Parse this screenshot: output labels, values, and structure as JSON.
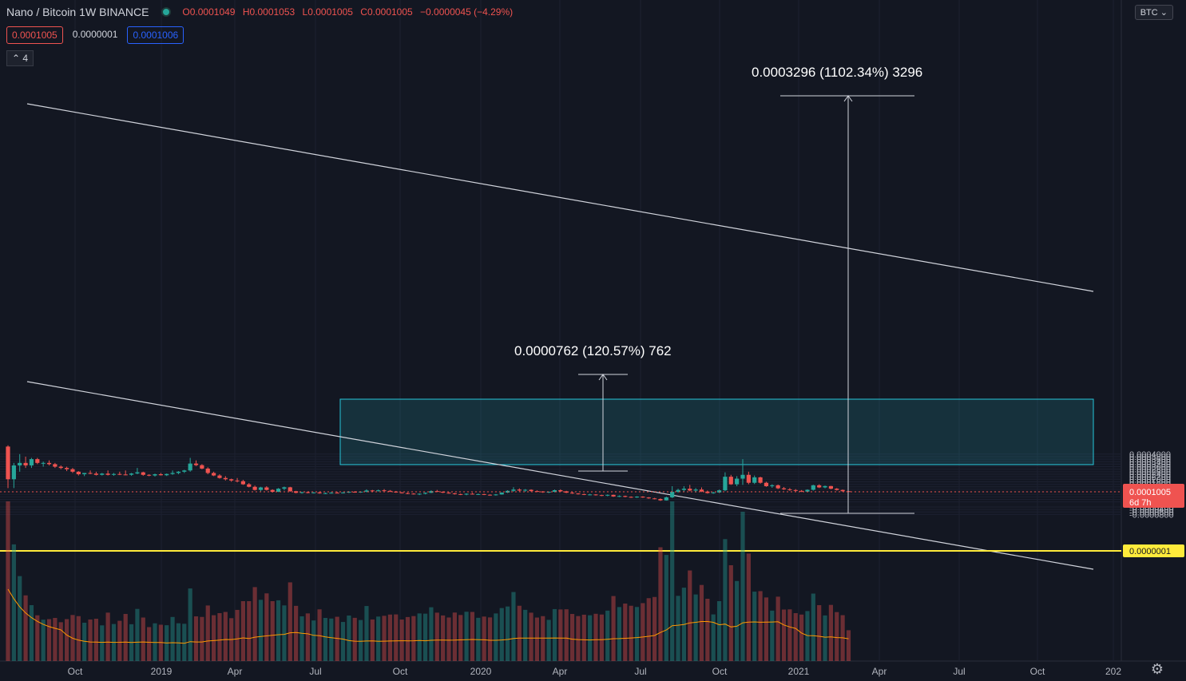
{
  "header": {
    "symbol": "Nano / Bitcoin",
    "interval": "1W",
    "exchange": "BINANCE",
    "open": "O0.0001049",
    "high": "H0.0001053",
    "low": "L0.0001005",
    "close": "C0.0001005",
    "change": "−0.0000045 (−4.29%)"
  },
  "order_pills": {
    "sell": "0.0001005",
    "spread": "0.0000001",
    "buy": "0.0001006"
  },
  "collapse_label": "4",
  "currency_button": "BTC",
  "settings_icon": "gear-icon",
  "colors": {
    "up": "#26a69a",
    "down": "#ef5350",
    "zone": "#26c6da",
    "hline": "#ffeb3b",
    "ma": "#ff9800"
  },
  "chart_data": {
    "type": "candlestick",
    "y_axis_ticks": [
      "0.0004000",
      "0.0003800",
      "0.0003600",
      "0.0003400",
      "0.0003200",
      "0.0003000",
      "0.0002800",
      "0.0002600",
      "0.0002400",
      "0.0002200",
      "0.0002000",
      "0.0001800",
      "0.0001600",
      "0.0001400",
      "0.0001200",
      "0.0001000",
      "0.0000800",
      "0.0000600",
      "0.0000400",
      "0.0000200",
      "-0.0000200",
      "-0.0000400",
      "-0.0000600",
      "-0.0000800"
    ],
    "x_axis_ticks": [
      "Oct",
      "2019",
      "Apr",
      "Jul",
      "Oct",
      "2020",
      "Apr",
      "Jul",
      "Oct",
      "2021",
      "Apr",
      "Jul",
      "Oct",
      "202"
    ],
    "current_price_label": "0.0001005",
    "countdown_label": "6d 7h",
    "hline_label": "0.0000001",
    "measure_labels": [
      "0.0000762 (120.57%) 762",
      "0.0003296 (1102.34%) 3296"
    ],
    "ohlc": [
      [
        0.00046,
        0.00047,
        0.00013,
        0.0002
      ],
      [
        0.0002,
        0.00033,
        0.00013,
        0.00031
      ],
      [
        0.00031,
        0.0004,
        0.00026,
        0.00033
      ],
      [
        0.00033,
        0.00038,
        0.00029,
        0.00031
      ],
      [
        0.00031,
        0.00037,
        0.00029,
        0.00036
      ],
      [
        0.00036,
        0.00037,
        0.00032,
        0.00033
      ],
      [
        0.00033,
        0.00034,
        0.0003,
        0.00033
      ],
      [
        0.00033,
        0.00035,
        0.00031,
        0.00032
      ],
      [
        0.00032,
        0.00033,
        0.00029,
        0.0003
      ],
      [
        0.0003,
        0.00031,
        0.00028,
        0.00029
      ],
      [
        0.00029,
        0.0003,
        0.000265,
        0.00028
      ],
      [
        0.00028,
        0.00029,
        0.00025,
        0.00026
      ],
      [
        0.00026,
        0.000265,
        0.00023,
        0.00024
      ],
      [
        0.00024,
        0.00025,
        0.000225,
        0.00025
      ],
      [
        0.00025,
        0.00027,
        0.00024,
        0.000245
      ],
      [
        0.000245,
        0.00026,
        0.00023,
        0.000235
      ],
      [
        0.000235,
        0.00025,
        0.00023,
        0.000245
      ],
      [
        0.000245,
        0.00027,
        0.00023,
        0.000235
      ],
      [
        0.000235,
        0.00025,
        0.000228,
        0.000242
      ],
      [
        0.000242,
        0.00026,
        0.000233,
        0.000238
      ],
      [
        0.000238,
        0.00027,
        0.000232,
        0.000236
      ],
      [
        0.000236,
        0.00025,
        0.000228,
        0.000246
      ],
      [
        0.000246,
        0.00029,
        0.00024,
        0.000255
      ],
      [
        0.000255,
        0.00026,
        0.000228,
        0.000235
      ],
      [
        0.000235,
        0.00024,
        0.000224,
        0.00023
      ],
      [
        0.00023,
        0.000245,
        0.000222,
        0.00024
      ],
      [
        0.00024,
        0.00025,
        0.00023,
        0.000232
      ],
      [
        0.000232,
        0.000246,
        0.000226,
        0.000242
      ],
      [
        0.000242,
        0.00027,
        0.000235,
        0.00025
      ],
      [
        0.00025,
        0.000265,
        0.00024,
        0.00026
      ],
      [
        0.00026,
        0.000275,
        0.00025,
        0.00027
      ],
      [
        0.00027,
        0.00037,
        0.00026,
        0.000325
      ],
      [
        0.000325,
        0.00035,
        0.000305,
        0.000312
      ],
      [
        0.000312,
        0.00032,
        0.00028,
        0.000285
      ],
      [
        0.000285,
        0.000295,
        0.00024,
        0.00025
      ],
      [
        0.00025,
        0.00026,
        0.000225,
        0.00023
      ],
      [
        0.00023,
        0.00024,
        0.000205,
        0.00021
      ],
      [
        0.00021,
        0.000225,
        0.00019,
        0.0002
      ],
      [
        0.0002,
        0.000205,
        0.00018,
        0.00019
      ],
      [
        0.00019,
        0.00021,
        0.000175,
        0.000185
      ],
      [
        0.000185,
        0.000195,
        0.000155,
        0.00016
      ],
      [
        0.00016,
        0.00017,
        0.000135,
        0.00014
      ],
      [
        0.00014,
        0.00015,
        0.00011,
        0.000115
      ],
      [
        0.000115,
        0.00014,
        0.000105,
        0.000135
      ],
      [
        0.000135,
        0.000145,
        0.00011,
        0.000115
      ],
      [
        0.000115,
        0.00012,
        9.5e-05,
        0.0001
      ],
      [
        0.0001,
        0.00013,
        9.8e-05,
        0.000125
      ],
      [
        0.000125,
        0.000142,
        0.000112,
        0.000136
      ],
      [
        0.000136,
        0.00014,
        0.0001,
        0.000105
      ],
      [
        0.000105,
        0.000108,
        8.8e-05,
        9.2e-05
      ],
      [
        9.2e-05,
        0.0001,
        8.6e-05,
        9.7e-05
      ],
      [
        9.7e-05,
        0.000103,
        8.8e-05,
        9.1e-05
      ],
      [
        9.1e-05,
        9.8e-05,
        8.7e-05,
        9.5e-05
      ],
      [
        9.5e-05,
        0.000102,
        8.5e-05,
        8.8e-05
      ],
      [
        8.8e-05,
        9.4e-05,
        8.2e-05,
        9e-05
      ],
      [
        9e-05,
        9.8e-05,
        8.6e-05,
        9.3e-05
      ],
      [
        9.3e-05,
        0.000101,
        8.8e-05,
        9.2e-05
      ],
      [
        9.2e-05,
        9.7e-05,
        8.7e-05,
        9.5e-05
      ],
      [
        9.5e-05,
        0.000105,
        9e-05,
        0.0001
      ],
      [
        0.0001,
        0.000106,
        9.3e-05,
        9.7e-05
      ],
      [
        9.7e-05,
        0.000104,
        9.2e-05,
        0.000101
      ],
      [
        0.000101,
        0.00012,
        9.6e-05,
        0.000111
      ],
      [
        0.000111,
        0.000115,
        0.000102,
        0.000106
      ],
      [
        0.000106,
        0.000118,
        0.000102,
        0.000112
      ],
      [
        0.000112,
        0.000122,
        0.000106,
        0.000108
      ],
      [
        0.000108,
        0.000114,
        9.8e-05,
        0.000102
      ],
      [
        0.000102,
        0.000107,
        9.2e-05,
        9.5e-05
      ],
      [
        9.5e-05,
        9.8e-05,
        8.7e-05,
        9e-05
      ],
      [
        9e-05,
        9.4e-05,
        8.2e-05,
        8.6e-05
      ],
      [
        8.6e-05,
        9e-05,
        7.8e-05,
        8.2e-05
      ],
      [
        8.2e-05,
        8.8e-05,
        7.4e-05,
        8.5e-05
      ],
      [
        8.5e-05,
        9.5e-05,
        8e-05,
        9.2e-05
      ],
      [
        9.2e-05,
        0.000112,
        9e-05,
        0.000106
      ],
      [
        0.000106,
        0.000115,
        9.8e-05,
        0.0001
      ],
      [
        0.0001,
        0.000104,
        9e-05,
        9.3e-05
      ],
      [
        9.3e-05,
        9.7e-05,
        8.5e-05,
        8.8e-05
      ],
      [
        8.8e-05,
        9.2e-05,
        7.8e-05,
        8.2e-05
      ],
      [
        8.2e-05,
        8.6e-05,
        7.4e-05,
        7.8e-05
      ],
      [
        7.8e-05,
        8.8e-05,
        7.3e-05,
        8.5e-05
      ],
      [
        8.5e-05,
        9.2e-05,
        7.8e-05,
        8e-05
      ],
      [
        8e-05,
        8.6e-05,
        7.5e-05,
        8.2e-05
      ],
      [
        8.2e-05,
        8.5e-05,
        7.4e-05,
        7.7e-05
      ],
      [
        7.7e-05,
        8e-05,
        7e-05,
        7.3e-05
      ],
      [
        7.3e-05,
        8.3e-05,
        7e-05,
        7.9e-05
      ],
      [
        7.9e-05,
        9.6e-05,
        7.7e-05,
        9.4e-05
      ],
      [
        9.4e-05,
        0.000113,
        9e-05,
        0.000108
      ],
      [
        0.000108,
        0.000137,
        0.0001,
        0.000118
      ],
      [
        0.000118,
        0.000128,
        0.000104,
        0.00011
      ],
      [
        0.00011,
        0.000122,
        0.0001,
        0.000116
      ],
      [
        0.000116,
        0.00012,
        0.000102,
        0.000106
      ],
      [
        0.000106,
        0.000112,
        9.8e-05,
        0.000103
      ],
      [
        0.000103,
        0.000106,
        9.2e-05,
        9.6e-05
      ],
      [
        9.6e-05,
        0.000102,
        9e-05,
        0.0001
      ],
      [
        0.0001,
        0.000118,
        9.6e-05,
        0.000113
      ],
      [
        0.000113,
        0.00012,
        0.0001,
        0.000104
      ],
      [
        0.000104,
        0.000108,
        9e-05,
        9.3e-05
      ],
      [
        9.3e-05,
        9.8e-05,
        8.4e-05,
        8.7e-05
      ],
      [
        8.7e-05,
        9e-05,
        7.8e-05,
        8.2e-05
      ],
      [
        8.2e-05,
        8.6e-05,
        7.4e-05,
        7.7e-05
      ],
      [
        7.7e-05,
        8.4e-05,
        7.2e-05,
        7.9e-05
      ],
      [
        7.9e-05,
        8.2e-05,
        7e-05,
        7.4e-05
      ],
      [
        7.4e-05,
        7.7e-05,
        6.6e-05,
        7e-05
      ],
      [
        7e-05,
        7.9e-05,
        6.5e-05,
        7.6e-05
      ],
      [
        7.6e-05,
        7.8e-05,
        6e-05,
        6.3e-05
      ],
      [
        6.3e-05,
        7.2e-05,
        5.8e-05,
        6.7e-05
      ],
      [
        6.7e-05,
        7e-05,
        5.6e-05,
        6e-05
      ],
      [
        6e-05,
        6.4e-05,
        5.2e-05,
        5.5e-05
      ],
      [
        5.5e-05,
        6.5e-05,
        5.2e-05,
        6.2e-05
      ],
      [
        6.2e-05,
        6.5e-05,
        5.2e-05,
        5.5e-05
      ],
      [
        5.5e-05,
        5.8e-05,
        4.5e-05,
        4.8e-05
      ],
      [
        4.8e-05,
        5.2e-05,
        4e-05,
        4.3e-05
      ],
      [
        4.3e-05,
        4.8e-05,
        2.8e-05,
        3.2e-05
      ],
      [
        3.2e-05,
        6.2e-05,
        3e-05,
        5.6e-05
      ],
      [
        5.6e-05,
        0.000145,
        5e-05,
        0.0001
      ],
      [
        0.0001,
        0.000125,
        9.2e-05,
        0.000115
      ],
      [
        0.000115,
        0.000145,
        0.000102,
        0.000125
      ],
      [
        0.000125,
        0.000155,
        0.000104,
        0.00011
      ],
      [
        0.00011,
        0.00013,
        9.5e-05,
        0.000118
      ],
      [
        0.000118,
        0.000135,
        9.8e-05,
        0.000102
      ],
      [
        0.000102,
        0.00011,
        8.6e-05,
        9e-05
      ],
      [
        9e-05,
        0.0001,
        8.5e-05,
        9.5e-05
      ],
      [
        9.5e-05,
        0.000118,
        9e-05,
        0.000112
      ],
      [
        0.000112,
        0.000255,
        0.000105,
        0.00022
      ],
      [
        0.00022,
        0.000235,
        0.000155,
        0.00016
      ],
      [
        0.00016,
        0.000225,
        0.000145,
        0.000205
      ],
      [
        0.000205,
        0.00036,
        0.000155,
        0.000235
      ],
      [
        0.000235,
        0.00026,
        0.00016,
        0.000172
      ],
      [
        0.000172,
        0.00023,
        0.000162,
        0.000215
      ],
      [
        0.000215,
        0.00022,
        0.000165,
        0.000172
      ],
      [
        0.000172,
        0.00018,
        0.00014,
        0.000145
      ],
      [
        0.000145,
        0.00016,
        0.000132,
        0.000152
      ],
      [
        0.000152,
        0.000158,
        0.000122,
        0.000128
      ],
      [
        0.000128,
        0.000138,
        0.000115,
        0.00012
      ],
      [
        0.00012,
        0.00013,
        0.000108,
        0.000114
      ],
      [
        0.000114,
        0.000122,
        0.000104,
        0.000108
      ],
      [
        0.000108,
        0.000114,
        9.8e-05,
        0.000102
      ],
      [
        0.000102,
        0.00012,
        9.9e-05,
        0.000116
      ],
      [
        0.000116,
        0.000156,
        0.00011,
        0.000152
      ],
      [
        0.000152,
        0.00016,
        0.00013,
        0.000135
      ],
      [
        0.000135,
        0.00015,
        0.000128,
        0.000146
      ],
      [
        0.000146,
        0.000148,
        0.00012,
        0.000125
      ],
      [
        0.000125,
        0.00013,
        0.00011,
        0.000115
      ],
      [
        0.000115,
        0.000118,
        0.000102,
        0.0001049
      ],
      [
        0.0001049,
        0.0001053,
        0.0001005,
        0.0001005
      ]
    ]
  }
}
